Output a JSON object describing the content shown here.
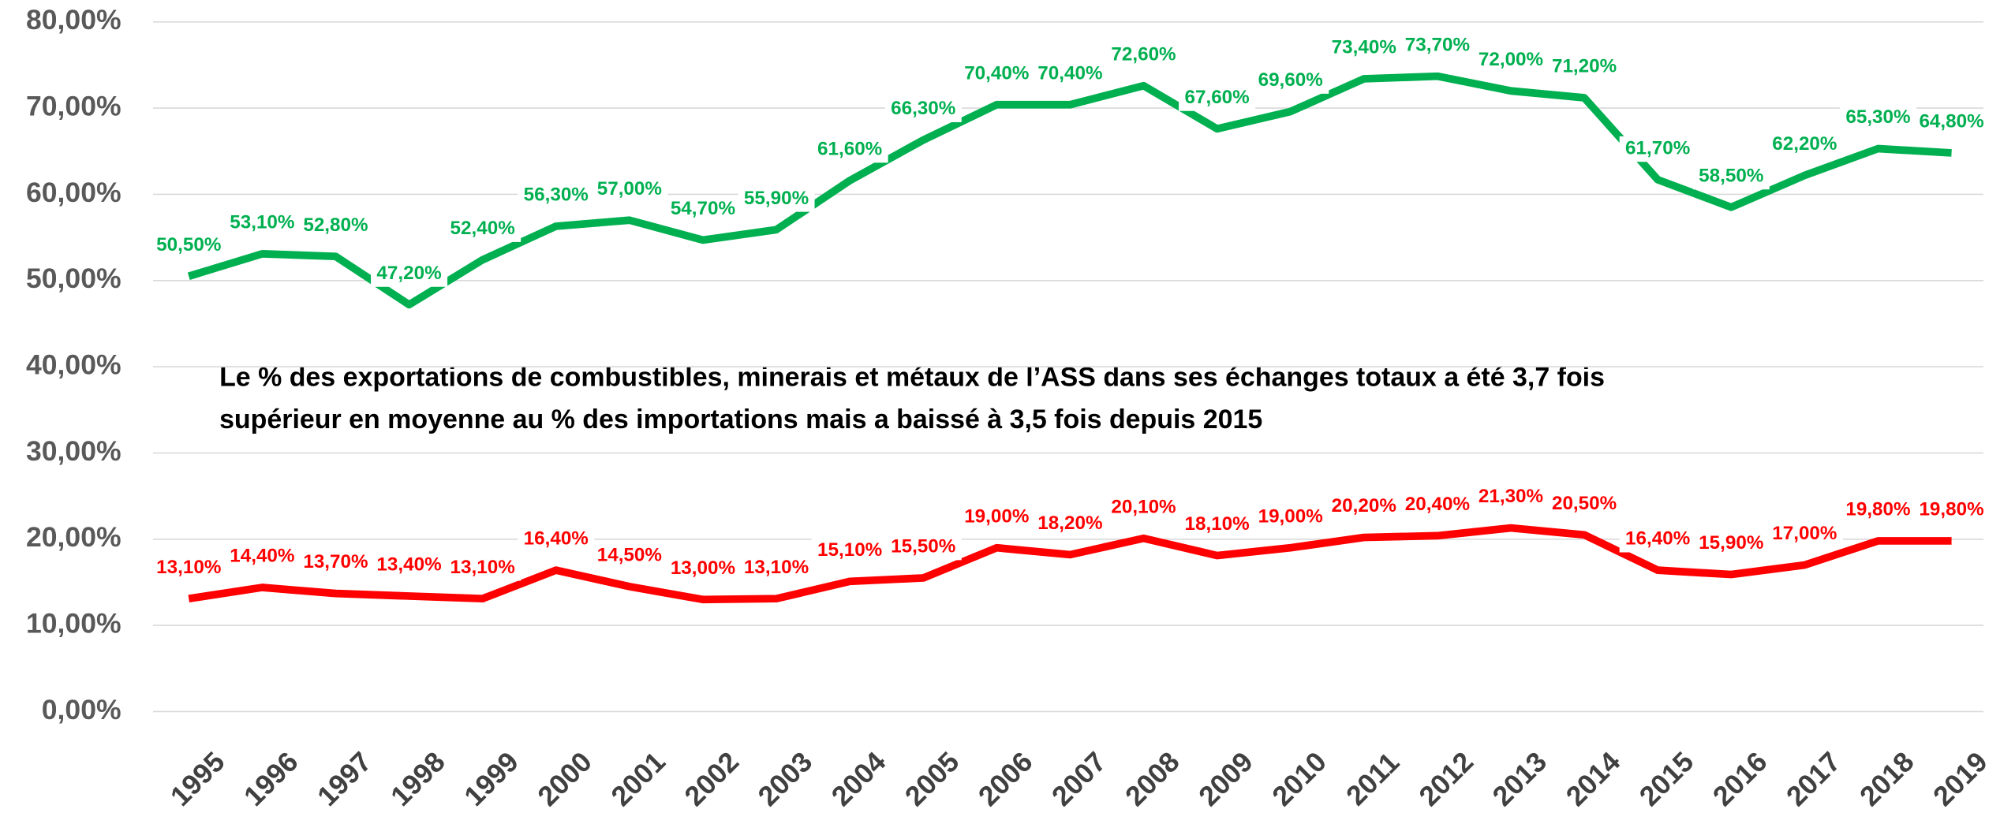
{
  "chart_data": {
    "type": "line",
    "annotation": [
      "Le % des exportations de combustibles, minerais et métaux de l’ASS dans ses échanges totaux a été 3,7 fois",
      "supérieur en moyenne au % des importations mais a baissé à 3,5 fois depuis 2015"
    ],
    "categories": [
      "1995",
      "1996",
      "1997",
      "1998",
      "1999",
      "2000",
      "2001",
      "2002",
      "2003",
      "2004",
      "2005",
      "2006",
      "2007",
      "2008",
      "2009",
      "2010",
      "2011",
      "2012",
      "2013",
      "2014",
      "2015",
      "2016",
      "2017",
      "2018",
      "2019"
    ],
    "series": [
      {
        "color": "#00b050",
        "values": [
          50.5,
          53.1,
          52.8,
          47.2,
          52.4,
          56.3,
          57.0,
          54.7,
          55.9,
          61.6,
          66.3,
          70.4,
          70.4,
          72.6,
          67.6,
          69.6,
          73.4,
          73.7,
          72.0,
          71.2,
          61.7,
          58.5,
          62.2,
          65.3,
          64.8
        ],
        "value_labels": [
          "50,50%",
          "53,10%",
          "52,80%",
          "47,20%",
          "52,40%",
          "56,30%",
          "57,00%",
          "54,70%",
          "55,90%",
          "61,60%",
          "66,30%",
          "70,40%",
          "70,40%",
          "72,60%",
          "67,60%",
          "69,60%",
          "73,40%",
          "73,70%",
          "72,00%",
          "71,20%",
          "61,70%",
          "58,50%",
          "62,20%",
          "65,30%",
          "64,80%"
        ]
      },
      {
        "color": "#ff0000",
        "values": [
          13.1,
          14.4,
          13.7,
          13.4,
          13.1,
          16.4,
          14.5,
          13.0,
          13.1,
          15.1,
          15.5,
          19.0,
          18.2,
          20.1,
          18.1,
          19.0,
          20.2,
          20.4,
          21.3,
          20.5,
          16.4,
          15.9,
          17.0,
          19.8,
          19.8
        ],
        "value_labels": [
          "13,10%",
          "14,40%",
          "13,70%",
          "13,40%",
          "13,10%",
          "16,40%",
          "14,50%",
          "13,00%",
          "13,10%",
          "15,10%",
          "15,50%",
          "19,00%",
          "18,20%",
          "20,10%",
          "18,10%",
          "19,00%",
          "20,20%",
          "20,40%",
          "21,30%",
          "20,50%",
          "16,40%",
          "15,90%",
          "17,00%",
          "19,80%",
          "19,80%"
        ]
      }
    ],
    "ylim": [
      0,
      80
    ],
    "yticks": [
      {
        "value": 0,
        "label": "0,00%"
      },
      {
        "value": 10,
        "label": "10,00%"
      },
      {
        "value": 20,
        "label": "20,00%"
      },
      {
        "value": 30,
        "label": "30,00%"
      },
      {
        "value": 40,
        "label": "40,00%"
      },
      {
        "value": 50,
        "label": "50,00%"
      },
      {
        "value": 60,
        "label": "60,00%"
      },
      {
        "value": 70,
        "label": "70,00%"
      },
      {
        "value": 80,
        "label": "80,00%"
      }
    ],
    "grid": true
  }
}
